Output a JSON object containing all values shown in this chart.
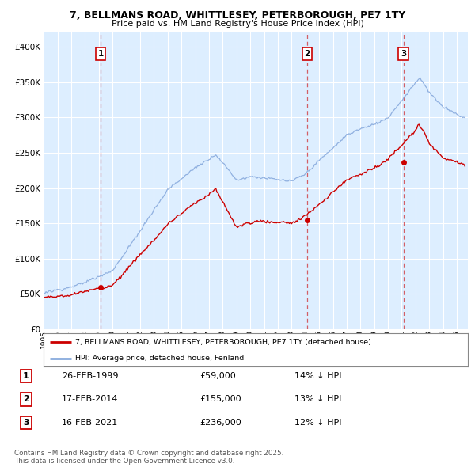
{
  "title": "7, BELLMANS ROAD, WHITTLESEY, PETERBOROUGH, PE7 1TY",
  "subtitle": "Price paid vs. HM Land Registry's House Price Index (HPI)",
  "sale_year_nums": [
    1999.14,
    2014.12,
    2021.12
  ],
  "sale_prices": [
    59000,
    155000,
    236000
  ],
  "sale_labels": [
    "1",
    "2",
    "3"
  ],
  "sale_below_hpi": [
    "14% ↓ HPI",
    "13% ↓ HPI",
    "12% ↓ HPI"
  ],
  "sale_date_labels": [
    "26-FEB-1999",
    "17-FEB-2014",
    "16-FEB-2021"
  ],
  "sale_price_labels": [
    "£59,000",
    "£155,000",
    "£236,000"
  ],
  "legend_line1": "7, BELLMANS ROAD, WHITTLESEY, PETERBOROUGH, PE7 1TY (detached house)",
  "legend_line2": "HPI: Average price, detached house, Fenland",
  "footer": "Contains HM Land Registry data © Crown copyright and database right 2025.\nThis data is licensed under the Open Government Licence v3.0.",
  "red_color": "#cc0000",
  "blue_color": "#88aadd",
  "dashed_color": "#cc0000",
  "ylim": [
    0,
    420000
  ],
  "yticks": [
    0,
    50000,
    100000,
    150000,
    200000,
    250000,
    300000,
    350000,
    400000
  ],
  "xlim_left": 1995.0,
  "xlim_right": 2025.8,
  "background": "#ddeeff",
  "grid_color": "#ffffff"
}
